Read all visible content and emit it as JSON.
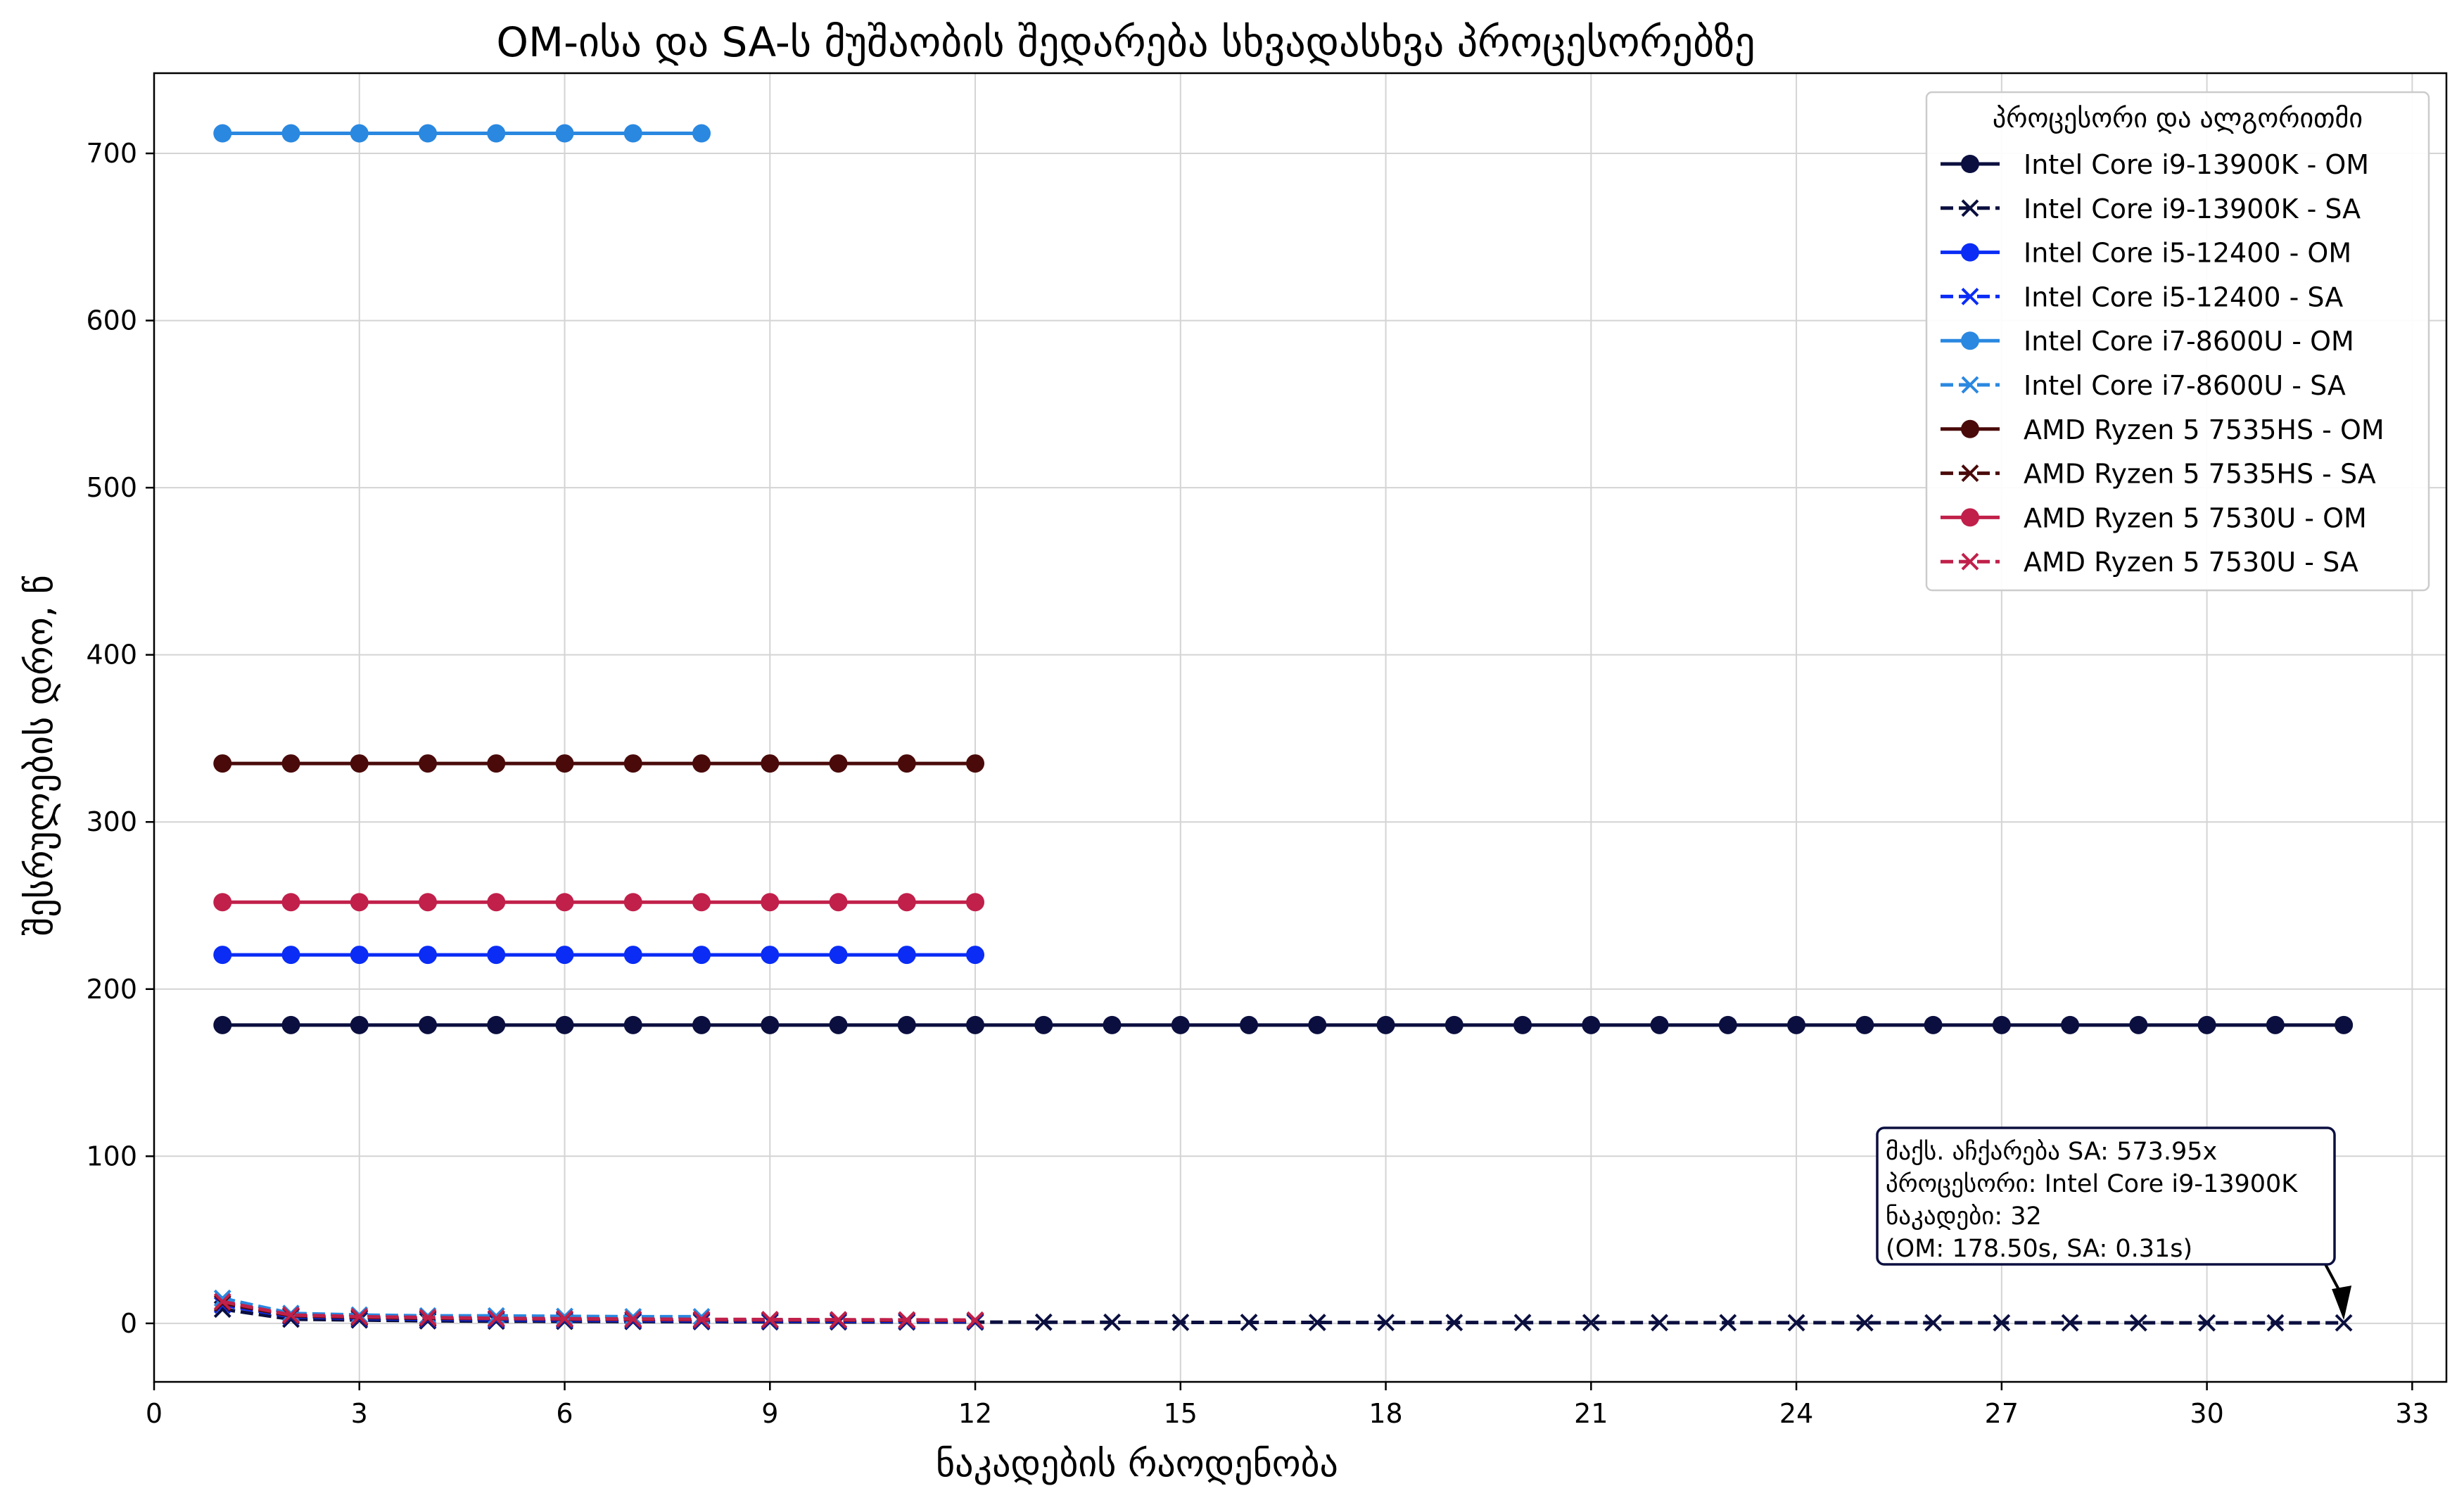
{
  "chart_data": {
    "type": "line",
    "title": "OM-ისა და SA-ს მუშაობის შედარება სხვადასხვა პროცესორებზე",
    "xlabel": "ნაკადების რაოდენობა",
    "ylabel": "შესრულების დრო, წ",
    "xlim": [
      0,
      33.5
    ],
    "ylim": [
      -35,
      748
    ],
    "xticks": [
      0,
      3,
      6,
      9,
      12,
      15,
      18,
      21,
      24,
      27,
      30,
      33
    ],
    "yticks": [
      0,
      100,
      200,
      300,
      400,
      500,
      600,
      700
    ],
    "grid": true,
    "legend": {
      "title": "პროცესორი და ალგორითმი",
      "position": "top-right"
    },
    "series": [
      {
        "name": "Intel Core i9-13900K - OM",
        "color": "#0b0f3f",
        "style": "solid",
        "marker": "circle",
        "x": [
          1,
          2,
          3,
          4,
          5,
          6,
          7,
          8,
          9,
          10,
          11,
          12,
          13,
          14,
          15,
          16,
          17,
          18,
          19,
          20,
          21,
          22,
          23,
          24,
          25,
          26,
          27,
          28,
          29,
          30,
          31,
          32
        ],
        "y": [
          178.5,
          178.5,
          178.5,
          178.5,
          178.5,
          178.5,
          178.5,
          178.5,
          178.5,
          178.5,
          178.5,
          178.5,
          178.5,
          178.5,
          178.5,
          178.5,
          178.5,
          178.5,
          178.5,
          178.5,
          178.5,
          178.5,
          178.5,
          178.5,
          178.5,
          178.5,
          178.5,
          178.5,
          178.5,
          178.5,
          178.5,
          178.5
        ]
      },
      {
        "name": "Intel Core i9-13900K - SA",
        "color": "#0b0f3f",
        "style": "dashed",
        "marker": "x",
        "x": [
          1,
          2,
          3,
          4,
          5,
          6,
          7,
          8,
          9,
          10,
          11,
          12,
          13,
          14,
          15,
          16,
          17,
          18,
          19,
          20,
          21,
          22,
          23,
          24,
          25,
          26,
          27,
          28,
          29,
          30,
          31,
          32
        ],
        "y": [
          8.5,
          2.5,
          2.0,
          1.5,
          1.3,
          1.2,
          1.1,
          1.0,
          0.9,
          0.85,
          0.8,
          0.75,
          0.7,
          0.65,
          0.6,
          0.58,
          0.55,
          0.52,
          0.5,
          0.48,
          0.46,
          0.44,
          0.42,
          0.4,
          0.38,
          0.37,
          0.36,
          0.35,
          0.34,
          0.33,
          0.32,
          0.31
        ]
      },
      {
        "name": "Intel Core i5-12400 - OM",
        "color": "#0a2cf5",
        "style": "solid",
        "marker": "circle",
        "x": [
          1,
          2,
          3,
          4,
          5,
          6,
          7,
          8,
          9,
          10,
          11,
          12
        ],
        "y": [
          220.5,
          220.5,
          220.5,
          220.5,
          220.5,
          220.5,
          220.5,
          220.5,
          220.5,
          220.5,
          220.5,
          220.5
        ]
      },
      {
        "name": "Intel Core i5-12400 - SA",
        "color": "#0a2cf5",
        "style": "dashed",
        "marker": "x",
        "x": [
          1,
          2,
          3,
          4,
          5,
          6,
          7,
          8,
          9,
          10,
          11,
          12
        ],
        "y": [
          11,
          4,
          3,
          2.5,
          2.2,
          2,
          1.8,
          1.6,
          1.5,
          1.4,
          1.3,
          1.2
        ]
      },
      {
        "name": "Intel Core i7-8600U - OM",
        "color": "#2a88e0",
        "style": "solid",
        "marker": "circle",
        "x": [
          1,
          2,
          3,
          4,
          5,
          6,
          7,
          8
        ],
        "y": [
          712,
          712,
          712,
          712,
          712,
          712,
          712,
          712
        ]
      },
      {
        "name": "Intel Core i7-8600U - SA",
        "color": "#2a88e0",
        "style": "dashed",
        "marker": "x",
        "x": [
          1,
          2,
          3,
          4,
          5,
          6,
          7,
          8
        ],
        "y": [
          15,
          6,
          5,
          4.5,
          4.5,
          4.2,
          4,
          4
        ]
      },
      {
        "name": "AMD Ryzen 5 7535HS - OM",
        "color": "#4a0a0a",
        "style": "solid",
        "marker": "circle",
        "x": [
          1,
          2,
          3,
          4,
          5,
          6,
          7,
          8,
          9,
          10,
          11,
          12
        ],
        "y": [
          335,
          335,
          335,
          335,
          335,
          335,
          335,
          335,
          335,
          335,
          335,
          335
        ]
      },
      {
        "name": "AMD Ryzen 5 7535HS - SA",
        "color": "#4a0a0a",
        "style": "dashed",
        "marker": "x",
        "x": [
          1,
          2,
          3,
          4,
          5,
          6,
          7,
          8,
          9,
          10,
          11,
          12
        ],
        "y": [
          12,
          4.5,
          3.5,
          3,
          2.8,
          2.5,
          2.3,
          2.1,
          2.0,
          1.9,
          1.8,
          1.7
        ]
      },
      {
        "name": "AMD Ryzen 5 7530U - OM",
        "color": "#c0204a",
        "style": "solid",
        "marker": "circle",
        "x": [
          1,
          2,
          3,
          4,
          5,
          6,
          7,
          8,
          9,
          10,
          11,
          12
        ],
        "y": [
          252,
          252,
          252,
          252,
          252,
          252,
          252,
          252,
          252,
          252,
          252,
          252
        ]
      },
      {
        "name": "AMD Ryzen 5 7530U - SA",
        "color": "#c0204a",
        "style": "dashed",
        "marker": "x",
        "x": [
          1,
          2,
          3,
          4,
          5,
          6,
          7,
          8,
          9,
          10,
          11,
          12
        ],
        "y": [
          13,
          5,
          4,
          3.5,
          3,
          2.8,
          2.6,
          2.4,
          2.3,
          2.2,
          2.1,
          2.0
        ]
      }
    ],
    "annotation": {
      "lines": [
        "მაქს. აჩქარება SA: 573.95x",
        "პროცესორი: Intel Core i9-13900K",
        "ნაკადები: 32",
        "(OM: 178.50s, SA: 0.31s)"
      ],
      "target_x": 32,
      "target_y": 0.31
    }
  }
}
